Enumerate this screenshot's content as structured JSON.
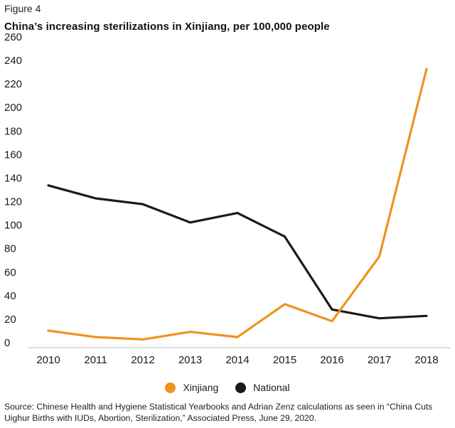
{
  "figure_label": "Figure 4",
  "source": "Source: Chinese Health and Hygiene Statistical Yearbooks and Adrian Zenz calculations as seen in “China Cuts Uighur Births with IUDs, Abortion, Sterilization,” Associated Press, June 29, 2020.",
  "chart_data": {
    "type": "line",
    "title": "China’s increasing sterilizations in Xinjiang, per 100,000 people",
    "xlabel": "",
    "ylabel": "",
    "x": [
      "2010",
      "2011",
      "2012",
      "2013",
      "2014",
      "2015",
      "2016",
      "2017",
      "2018"
    ],
    "ylim": [
      0,
      260
    ],
    "yticks": [
      0,
      20,
      40,
      60,
      80,
      100,
      120,
      140,
      160,
      180,
      200,
      220,
      240,
      260
    ],
    "grid": false,
    "legend_position": "bottom",
    "series": [
      {
        "name": "Xinjiang",
        "color": "#f0921e",
        "values": [
          14.5,
          9,
          7,
          13.5,
          9,
          37,
          22.5,
          77.5,
          237
        ]
      },
      {
        "name": "National",
        "color": "#1a1a1a",
        "values": [
          138,
          127,
          122,
          106.5,
          114.5,
          94.5,
          32.5,
          25,
          27
        ]
      }
    ]
  }
}
